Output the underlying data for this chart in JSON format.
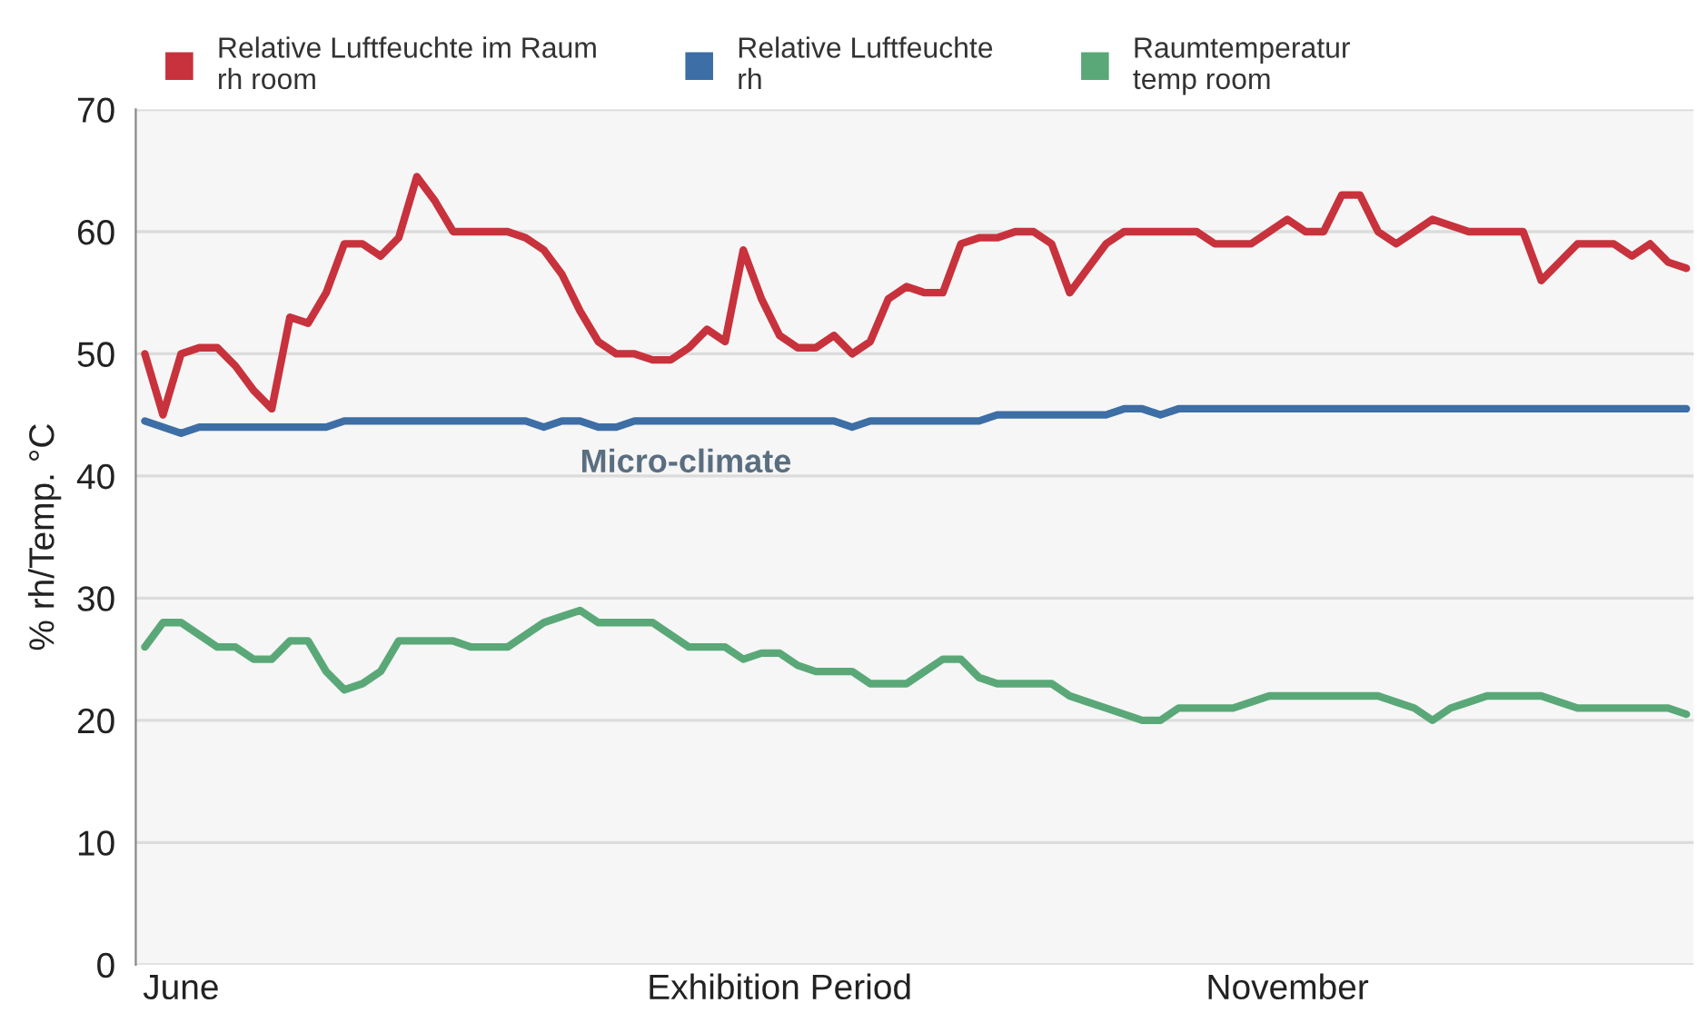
{
  "chart_data": {
    "type": "line",
    "ylabel": "% rh/Temp. °C",
    "categories": [
      null,
      null,
      "June",
      null,
      null,
      null,
      null,
      null,
      null,
      null,
      null,
      null,
      null,
      null,
      null,
      null,
      null,
      null,
      null,
      null,
      null,
      null,
      null,
      null,
      null,
      null,
      null,
      null,
      null,
      null,
      null,
      null,
      null,
      null,
      null,
      "Exhibition Period",
      null,
      null,
      null,
      null,
      null,
      null,
      null,
      null,
      null,
      null,
      null,
      null,
      null,
      null,
      null,
      null,
      null,
      null,
      null,
      null,
      null,
      null,
      null,
      null,
      null,
      null,
      null,
      "November",
      null,
      null,
      null,
      null,
      null,
      null,
      null,
      null,
      null,
      null,
      null,
      null,
      null,
      null,
      null,
      null,
      null,
      null,
      null,
      null,
      null,
      null
    ],
    "series": [
      {
        "name": "Relative Luftfeuchte im Raum\nrh room",
        "color": "#c8323c",
        "values": [
          50,
          45,
          50,
          50.5,
          50.5,
          49,
          47,
          45.5,
          53,
          52.5,
          55,
          59,
          59,
          58,
          59.5,
          64.5,
          62.5,
          60,
          60,
          60,
          60,
          59.5,
          58.5,
          56.5,
          53.5,
          51,
          50,
          50,
          49.5,
          49.5,
          50.5,
          52,
          51,
          58.5,
          54.5,
          51.5,
          50.5,
          50.5,
          51.5,
          50,
          51,
          54.5,
          55.5,
          55,
          55,
          59,
          59.5,
          59.5,
          60,
          60,
          59,
          55,
          57,
          59,
          60,
          60,
          60,
          60,
          60,
          59,
          59,
          59,
          60,
          61,
          60,
          60,
          63,
          63,
          60,
          59,
          60,
          61,
          60.5,
          60,
          60,
          60,
          60,
          56,
          57.5,
          59,
          59,
          59,
          58,
          59,
          57.5,
          57
        ]
      },
      {
        "name": "Relative Luftfeuchte\nrh",
        "color": "#3d6ea5",
        "values": [
          44.5,
          44,
          43.5,
          44,
          44,
          44,
          44,
          44,
          44,
          44,
          44,
          44.5,
          44.5,
          44.5,
          44.5,
          44.5,
          44.5,
          44.5,
          44.5,
          44.5,
          44.5,
          44.5,
          44,
          44.5,
          44.5,
          44,
          44,
          44.5,
          44.5,
          44.5,
          44.5,
          44.5,
          44.5,
          44.5,
          44.5,
          44.5,
          44.5,
          44.5,
          44.5,
          44,
          44.5,
          44.5,
          44.5,
          44.5,
          44.5,
          44.5,
          44.5,
          45,
          45,
          45,
          45,
          45,
          45,
          45,
          45.5,
          45.5,
          45,
          45.5,
          45.5,
          45.5,
          45.5,
          45.5,
          45.5,
          45.5,
          45.5,
          45.5,
          45.5,
          45.5,
          45.5,
          45.5,
          45.5,
          45.5,
          45.5,
          45.5,
          45.5,
          45.5,
          45.5,
          45.5,
          45.5,
          45.5,
          45.5,
          45.5,
          45.5,
          45.5,
          45.5,
          45.5
        ]
      },
      {
        "name": "Raumtemperatur\ntemp room",
        "color": "#5aa878",
        "values": [
          26,
          28,
          28,
          27,
          26,
          26,
          25,
          25,
          26.5,
          26.5,
          24,
          22.5,
          23,
          24,
          26.5,
          26.5,
          26.5,
          26.5,
          26,
          26,
          26,
          27,
          28,
          28.5,
          29,
          28,
          28,
          28,
          28,
          27,
          26,
          26,
          26,
          25,
          25.5,
          25.5,
          24.5,
          24,
          24,
          24,
          23,
          23,
          23,
          24,
          25,
          25,
          23.5,
          23,
          23,
          23,
          23,
          22,
          21.5,
          21,
          20.5,
          20,
          20,
          21,
          21,
          21,
          21,
          21.5,
          22,
          22,
          22,
          22,
          22,
          22,
          22,
          21.5,
          21,
          20,
          21,
          21.5,
          22,
          22,
          22,
          22,
          21.5,
          21,
          21,
          21,
          21,
          21,
          21,
          20.5
        ]
      }
    ],
    "annotations": [
      "Micro-climate"
    ],
    "ylim": [
      0,
      70
    ],
    "yticks": [
      0,
      10,
      20,
      30,
      40,
      50,
      60,
      70
    ],
    "grid": "y",
    "legend": "top",
    "line_style": "solid",
    "marker": "none"
  }
}
